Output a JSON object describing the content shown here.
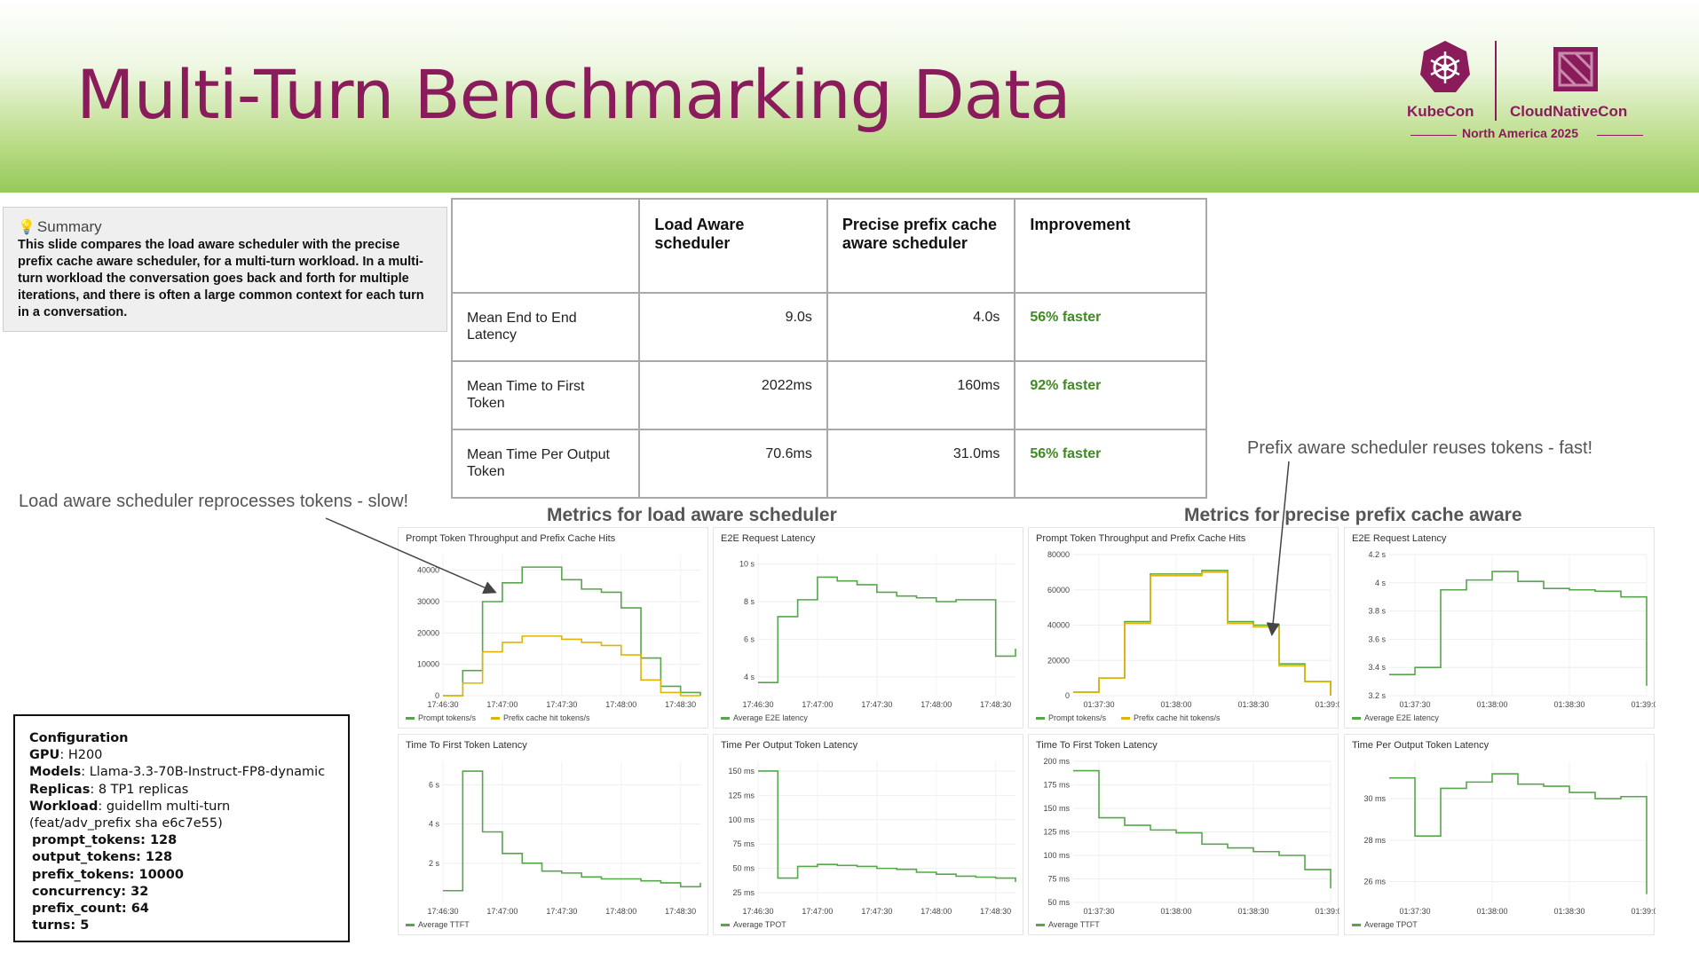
{
  "header": {
    "title": "Multi-Turn Benchmarking Data",
    "logo_left": "KubeCon",
    "logo_right": "CloudNativeCon",
    "event": "North America 2025",
    "brand_color": "#8b1c5c"
  },
  "summary": {
    "heading": "Summary",
    "text": "This slide compares the load aware scheduler with the precise prefix cache aware scheduler, for a multi-turn workload. In a multi-turn workload the conversation goes back and forth for multiple iterations, and there is often a large common context for each turn in a conversation."
  },
  "table": {
    "headers": [
      "",
      "Load Aware scheduler",
      "Precise prefix cache aware scheduler",
      "Improvement"
    ],
    "rows": [
      {
        "metric": "Mean End to End Latency",
        "load": "9.0s",
        "precise": "4.0s",
        "improvement": "56% faster"
      },
      {
        "metric": "Mean Time to First Token",
        "load": "2022ms",
        "precise": "160ms",
        "improvement": "92% faster"
      },
      {
        "metric": "Mean Time Per Output Token",
        "load": "70.6ms",
        "precise": "31.0ms",
        "improvement": "56% faster"
      }
    ]
  },
  "callouts": {
    "left": "Load aware scheduler reprocesses tokens - slow!",
    "right": "Prefix aware scheduler reuses tokens - fast!"
  },
  "sections": {
    "left": "Metrics for load aware scheduler",
    "right": "Metrics for precise prefix cache aware"
  },
  "config": {
    "title": "Configuration",
    "gpu_label": "GPU",
    "gpu": "H200",
    "models_label": "Models",
    "models": "Llama-3.3-70B-Instruct-FP8-dynamic",
    "replicas_label": "Replicas",
    "replicas": "8 TP1 replicas",
    "workload_label": "Workload",
    "workload": "guidellm multi-turn (feat/adv_prefix sha e6c7e55)",
    "params": [
      "prompt_tokens: 128",
      "output_tokens: 128",
      "prefix_tokens: 10000",
      "concurrency: 32",
      "prefix_count: 64",
      "turns: 5"
    ]
  },
  "colors": {
    "green_series": "#56a64b",
    "yellow_series": "#e0b400",
    "improvement": "#3f8a21"
  },
  "chart_data": [
    {
      "type": "line",
      "title": "Prompt Token Throughput and Prefix Cache Hits",
      "x": [
        "17:46:30",
        "17:46:40",
        "17:46:50",
        "17:47:00",
        "17:47:10",
        "17:47:20",
        "17:47:30",
        "17:47:40",
        "17:47:50",
        "17:48:00",
        "17:48:10",
        "17:48:20",
        "17:48:30",
        "17:48:40"
      ],
      "xticks": [
        "17:46:30",
        "17:47:00",
        "17:47:30",
        "17:48:00",
        "17:48:30"
      ],
      "yticks": [
        "0",
        "10000",
        "20000",
        "30000",
        "40000"
      ],
      "ylim": [
        0,
        45000
      ],
      "series": [
        {
          "name": "Prompt tokens/s",
          "color": "#56a64b",
          "values": [
            0,
            8000,
            30000,
            36000,
            41000,
            41000,
            37000,
            34000,
            33000,
            28000,
            12000,
            3000,
            1000,
            0
          ]
        },
        {
          "name": "Prefix cache hit tokens/s",
          "color": "#e0b400",
          "values": [
            0,
            4000,
            14000,
            17000,
            19000,
            19000,
            18000,
            17000,
            16000,
            13000,
            5000,
            1000,
            0,
            0
          ]
        }
      ]
    },
    {
      "type": "line",
      "title": "E2E Request Latency",
      "x": [
        "17:46:30",
        "17:46:40",
        "17:46:50",
        "17:47:00",
        "17:47:10",
        "17:47:20",
        "17:47:30",
        "17:47:40",
        "17:47:50",
        "17:48:00",
        "17:48:10",
        "17:48:20",
        "17:48:30",
        "17:48:40"
      ],
      "xticks": [
        "17:46:30",
        "17:47:00",
        "17:47:30",
        "17:48:00",
        "17:48:30"
      ],
      "yticks": [
        "4 s",
        "6 s",
        "8 s",
        "10 s"
      ],
      "ylim": [
        3,
        10.5
      ],
      "series": [
        {
          "name": "Average E2E latency",
          "color": "#56a64b",
          "values": [
            3.7,
            7.2,
            8.1,
            9.3,
            9.1,
            8.9,
            8.5,
            8.3,
            8.2,
            8.0,
            8.1,
            8.1,
            5.1,
            5.5
          ]
        }
      ]
    },
    {
      "type": "line",
      "title": "Prompt Token Throughput and Prefix Cache Hits",
      "x": [
        "01:37:20",
        "01:37:30",
        "01:37:40",
        "01:37:50",
        "01:38:00",
        "01:38:10",
        "01:38:20",
        "01:38:30",
        "01:38:40",
        "01:38:50",
        "01:39:00"
      ],
      "xticks": [
        "01:37:30",
        "01:38:00",
        "01:38:30",
        "01:39:00"
      ],
      "yticks": [
        "0",
        "20000",
        "40000",
        "60000",
        "80000"
      ],
      "ylim": [
        0,
        80000
      ],
      "series": [
        {
          "name": "Prompt tokens/s",
          "color": "#56a64b",
          "values": [
            2000,
            10000,
            42000,
            69000,
            69000,
            71000,
            42000,
            40000,
            18000,
            8000,
            0
          ]
        },
        {
          "name": "Prefix cache hit tokens/s",
          "color": "#e0b400",
          "values": [
            2000,
            10000,
            41000,
            68000,
            68000,
            70000,
            41000,
            39000,
            17000,
            8000,
            0
          ]
        }
      ]
    },
    {
      "type": "line",
      "title": "E2E Request Latency",
      "x": [
        "01:37:20",
        "01:37:30",
        "01:37:40",
        "01:37:50",
        "01:38:00",
        "01:38:10",
        "01:38:20",
        "01:38:30",
        "01:38:40",
        "01:38:50",
        "01:39:00"
      ],
      "xticks": [
        "01:37:30",
        "01:38:00",
        "01:38:30",
        "01:39:00"
      ],
      "yticks": [
        "3.2 s",
        "3.4 s",
        "3.6 s",
        "3.8 s",
        "4 s",
        "4.2 s"
      ],
      "ylim": [
        3.2,
        4.2
      ],
      "series": [
        {
          "name": "Average E2E latency",
          "color": "#56a64b",
          "values": [
            3.35,
            3.4,
            3.95,
            4.02,
            4.08,
            4.01,
            3.96,
            3.95,
            3.94,
            3.9,
            3.27
          ]
        }
      ]
    },
    {
      "type": "line",
      "title": "Time To First Token Latency",
      "x": [
        "17:46:30",
        "17:46:40",
        "17:46:50",
        "17:47:00",
        "17:47:10",
        "17:47:20",
        "17:47:30",
        "17:47:40",
        "17:47:50",
        "17:48:00",
        "17:48:10",
        "17:48:20",
        "17:48:30",
        "17:48:40"
      ],
      "xticks": [
        "17:46:30",
        "17:47:00",
        "17:47:30",
        "17:48:00",
        "17:48:30"
      ],
      "yticks": [
        "2 s",
        "4 s",
        "6 s"
      ],
      "ylim": [
        0,
        7.2
      ],
      "series": [
        {
          "name": "Average TTFT",
          "color": "#56a64b",
          "values": [
            0.6,
            6.7,
            3.6,
            2.5,
            2.0,
            1.6,
            1.5,
            1.3,
            1.2,
            1.2,
            1.1,
            1.0,
            0.8,
            1.0
          ]
        }
      ]
    },
    {
      "type": "line",
      "title": "Time Per Output Token Latency",
      "x": [
        "17:46:30",
        "17:46:40",
        "17:46:50",
        "17:47:00",
        "17:47:10",
        "17:47:20",
        "17:47:30",
        "17:47:40",
        "17:47:50",
        "17:48:00",
        "17:48:10",
        "17:48:20",
        "17:48:30",
        "17:48:40"
      ],
      "xticks": [
        "17:46:30",
        "17:47:00",
        "17:47:30",
        "17:48:00",
        "17:48:30"
      ],
      "yticks": [
        "25 ms",
        "50 ms",
        "75 ms",
        "100 ms",
        "125 ms",
        "150 ms"
      ],
      "ylim": [
        15,
        160
      ],
      "series": [
        {
          "name": "Average TPOT",
          "color": "#56a64b",
          "values": [
            150,
            40,
            52,
            54,
            53,
            52,
            50,
            49,
            46,
            44,
            42,
            41,
            40,
            36
          ]
        }
      ]
    },
    {
      "type": "line",
      "title": "Time To First Token Latency",
      "x": [
        "01:37:20",
        "01:37:30",
        "01:37:40",
        "01:37:50",
        "01:38:00",
        "01:38:10",
        "01:38:20",
        "01:38:30",
        "01:38:40",
        "01:38:50",
        "01:39:00"
      ],
      "xticks": [
        "01:37:30",
        "01:38:00",
        "01:38:30",
        "01:39:00"
      ],
      "yticks": [
        "50 ms",
        "75 ms",
        "100 ms",
        "125 ms",
        "150 ms",
        "175 ms",
        "200 ms"
      ],
      "ylim": [
        50,
        200
      ],
      "series": [
        {
          "name": "Average TTFT",
          "color": "#56a64b",
          "values": [
            190,
            140,
            132,
            127,
            124,
            112,
            108,
            104,
            100,
            85,
            65
          ]
        }
      ]
    },
    {
      "type": "line",
      "title": "Time Per Output Token Latency",
      "x": [
        "01:37:20",
        "01:37:30",
        "01:37:40",
        "01:37:50",
        "01:38:00",
        "01:38:10",
        "01:38:20",
        "01:38:30",
        "01:38:40",
        "01:38:50",
        "01:39:00"
      ],
      "xticks": [
        "01:37:30",
        "01:38:00",
        "01:38:30",
        "01:39:00"
      ],
      "yticks": [
        "26 ms",
        "28 ms",
        "30 ms"
      ],
      "ylim": [
        25,
        31.8
      ],
      "series": [
        {
          "name": "Average TPOT",
          "color": "#56a64b",
          "values": [
            31.0,
            28.2,
            30.5,
            30.8,
            31.2,
            30.7,
            30.6,
            30.3,
            30.0,
            30.1,
            25.4
          ]
        }
      ]
    }
  ]
}
